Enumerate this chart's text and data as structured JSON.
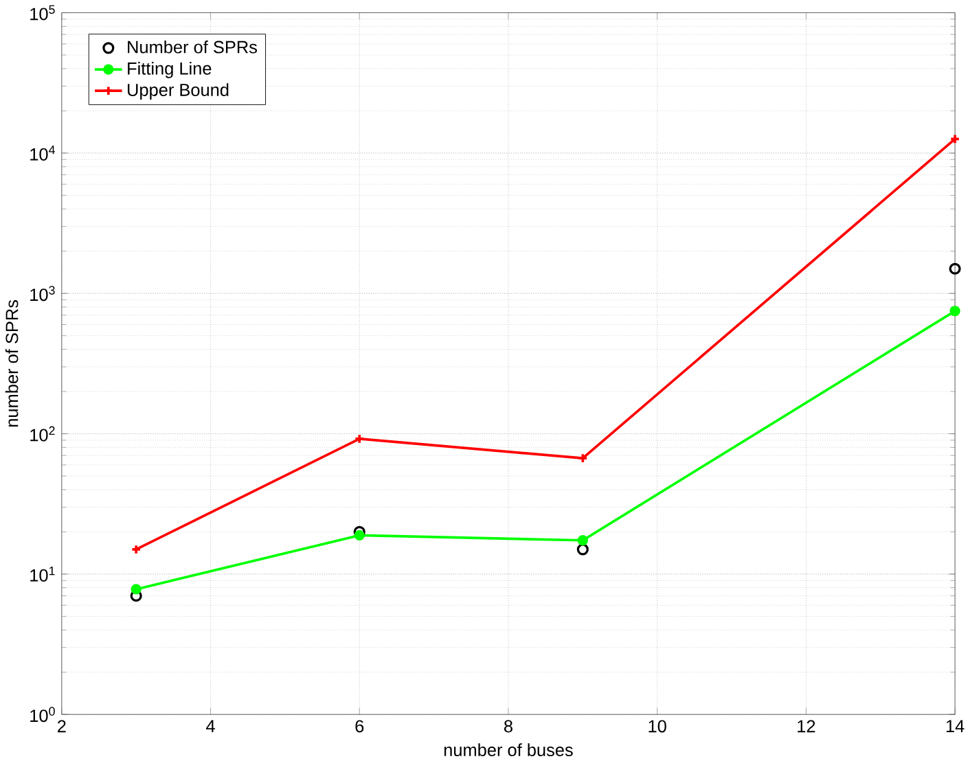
{
  "chart_data": {
    "type": "line",
    "xlabel": "number of buses",
    "ylabel": "number of SPRs",
    "log": "y",
    "grid": true,
    "legend": "top left",
    "x": [
      3,
      6,
      9,
      14
    ],
    "xlim": [
      2,
      14
    ],
    "xticks": [
      2,
      4,
      6,
      8,
      10,
      12,
      14
    ],
    "ylim": [
      1,
      100000
    ],
    "yticks": [
      {
        "value": 1,
        "label": "10$^{0}$"
      },
      {
        "value": 10,
        "label": "10$^{1}$"
      },
      {
        "value": 100,
        "label": "10$^{2}$"
      },
      {
        "value": 1000,
        "label": "10$^{3}$"
      },
      {
        "value": 10000,
        "label": "10$^{4}$"
      },
      {
        "value": 100000,
        "label": "10$^{5}$"
      }
    ],
    "series": [
      {
        "name": "Number of SPRs",
        "type": "scatter",
        "marker": "circle",
        "color": "#000000",
        "values": [
          7,
          20,
          15,
          1500
        ]
      },
      {
        "name": "Fitting Line",
        "marker": "circle",
        "line_style": "solid",
        "color": "#00ff00",
        "values": [
          7.8,
          18.9,
          17.4,
          750
        ]
      },
      {
        "name": "Upper Bound",
        "marker": "cross",
        "line_style": "solid",
        "color": "#ff0000",
        "values": [
          15,
          92,
          67,
          12600
        ]
      }
    ]
  }
}
